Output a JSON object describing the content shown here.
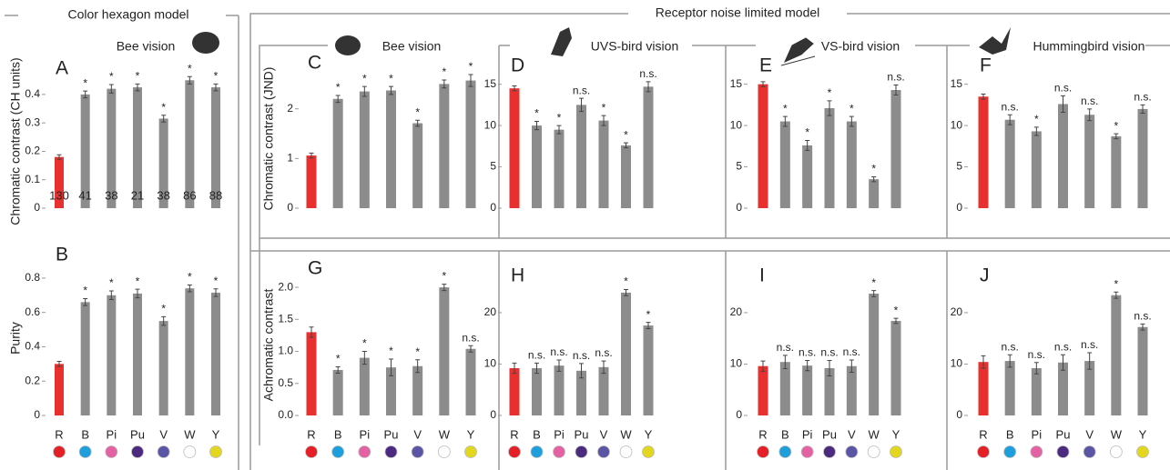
{
  "sections": [
    {
      "title": "Color hexagon model"
    },
    {
      "title": "Receptor noise limited model"
    }
  ],
  "chart_data": [
    {
      "type": "bar",
      "letter": "A",
      "subtitle": "Bee vision",
      "ylabel": "Chromatic contrast (CH units)",
      "values": [
        0.18,
        0.4,
        0.42,
        0.425,
        0.315,
        0.45,
        0.425
      ],
      "errors": [
        0.008,
        0.012,
        0.015,
        0.012,
        0.012,
        0.013,
        0.012
      ],
      "annotations": [
        null,
        "*",
        "*",
        "*",
        "*",
        "*",
        "*"
      ],
      "sample_sizes": [
        130,
        41,
        38,
        21,
        38,
        86,
        88
      ],
      "colors": [
        "#e8302e",
        "#8c8c8c",
        "#8c8c8c",
        "#8c8c8c",
        "#8c8c8c",
        "#8c8c8c",
        "#8c8c8c"
      ],
      "ylim": [
        0,
        0.47
      ],
      "yticks": [
        0,
        0.1,
        0.2,
        0.3,
        0.4
      ]
    },
    {
      "type": "bar",
      "letter": "B",
      "ylabel": "Purity",
      "categories": [
        "R",
        "B",
        "Pi",
        "Pu",
        "V",
        "W",
        "Y"
      ],
      "dot_colors": [
        "#e41f26",
        "#1e9fdc",
        "#e462a4",
        "#4b2a7f",
        "#5a55a5",
        "#ffffff",
        "#e3d61f"
      ],
      "values": [
        0.3,
        0.66,
        0.7,
        0.71,
        0.55,
        0.74,
        0.715
      ],
      "errors": [
        0.015,
        0.02,
        0.025,
        0.025,
        0.025,
        0.02,
        0.022
      ],
      "annotations": [
        null,
        "*",
        "*",
        "*",
        "*",
        "*",
        "*"
      ],
      "colors": [
        "#e8302e",
        "#8c8c8c",
        "#8c8c8c",
        "#8c8c8c",
        "#8c8c8c",
        "#8c8c8c",
        "#8c8c8c"
      ],
      "ylim": [
        0,
        0.9
      ],
      "yticks": [
        0,
        0.2,
        0.4,
        0.6,
        0.8
      ]
    },
    {
      "type": "bar",
      "letter": "C",
      "subtitle": "Bee vision",
      "ylabel": "Chromatic contrast (JND)",
      "values": [
        1.06,
        2.2,
        2.35,
        2.37,
        1.71,
        2.5,
        2.57
      ],
      "errors": [
        0.05,
        0.07,
        0.1,
        0.08,
        0.06,
        0.08,
        0.12
      ],
      "annotations": [
        null,
        "*",
        "*",
        "*",
        "*",
        "*",
        "*"
      ],
      "colors": [
        "#e8302e",
        "#8c8c8c",
        "#8c8c8c",
        "#8c8c8c",
        "#8c8c8c",
        "#8c8c8c",
        "#8c8c8c"
      ],
      "ylim": [
        0,
        2.8
      ],
      "yticks": [
        0,
        1,
        2
      ]
    },
    {
      "type": "bar",
      "letter": "D",
      "subtitle": "UVS-bird vision",
      "values": [
        14.5,
        10.0,
        9.5,
        12.5,
        10.6,
        7.6,
        14.7
      ],
      "errors": [
        0.3,
        0.5,
        0.5,
        0.8,
        0.6,
        0.3,
        0.6
      ],
      "annotations": [
        null,
        "*",
        "*",
        "n.s.",
        "*",
        "*",
        "n.s."
      ],
      "colors": [
        "#e8302e",
        "#8c8c8c",
        "#8c8c8c",
        "#8c8c8c",
        "#8c8c8c",
        "#8c8c8c",
        "#8c8c8c"
      ],
      "ylim": [
        0,
        16.5
      ],
      "yticks": [
        0,
        5,
        10,
        15
      ]
    },
    {
      "type": "bar",
      "letter": "E",
      "subtitle": "VS-bird vision",
      "values": [
        15.0,
        10.5,
        7.6,
        12.1,
        10.5,
        3.5,
        14.3
      ],
      "errors": [
        0.3,
        0.6,
        0.6,
        0.9,
        0.6,
        0.3,
        0.6
      ],
      "annotations": [
        null,
        "*",
        "*",
        "*",
        "*",
        "*",
        "n.s."
      ],
      "colors": [
        "#e8302e",
        "#8c8c8c",
        "#8c8c8c",
        "#8c8c8c",
        "#8c8c8c",
        "#8c8c8c",
        "#8c8c8c"
      ],
      "ylim": [
        0,
        16.5
      ],
      "yticks": [
        0,
        5,
        10,
        15
      ]
    },
    {
      "type": "bar",
      "letter": "F",
      "subtitle": "Hummingbird vision",
      "values": [
        13.5,
        10.7,
        9.3,
        12.6,
        11.3,
        8.7,
        12.0
      ],
      "errors": [
        0.3,
        0.6,
        0.5,
        1.0,
        0.7,
        0.3,
        0.5
      ],
      "annotations": [
        null,
        "n.s.",
        "*",
        "n.s.",
        "n.s.",
        "*",
        "n.s."
      ],
      "colors": [
        "#e8302e",
        "#8c8c8c",
        "#8c8c8c",
        "#8c8c8c",
        "#8c8c8c",
        "#8c8c8c",
        "#8c8c8c"
      ],
      "ylim": [
        0,
        16.5
      ],
      "yticks": [
        0,
        5,
        10,
        15
      ]
    },
    {
      "type": "bar",
      "letter": "G",
      "ylabel": "Achromatic contrast",
      "categories": [
        "R",
        "B",
        "Pi",
        "Pu",
        "V",
        "W",
        "Y"
      ],
      "dot_colors": [
        "#e41f26",
        "#1e9fdc",
        "#e462a4",
        "#4b2a7f",
        "#5a55a5",
        "#ffffff",
        "#e3d61f"
      ],
      "values": [
        1.3,
        0.71,
        0.9,
        0.75,
        0.77,
        2.0,
        1.04
      ],
      "errors": [
        0.08,
        0.05,
        0.1,
        0.13,
        0.1,
        0.05,
        0.05
      ],
      "annotations": [
        null,
        "*",
        "*",
        "*",
        "*",
        "*",
        "n.s."
      ],
      "colors": [
        "#e8302e",
        "#8c8c8c",
        "#8c8c8c",
        "#8c8c8c",
        "#8c8c8c",
        "#8c8c8c",
        "#8c8c8c"
      ],
      "ylim": [
        0,
        2.2
      ],
      "yticks": [
        {
          "value": 0,
          "label": "0.0"
        },
        0.5,
        {
          "value": 1,
          "label": "1.0"
        },
        1.5,
        {
          "value": 2,
          "label": "2.0"
        }
      ]
    },
    {
      "type": "bar",
      "letter": "H",
      "categories": [
        "R",
        "B",
        "Pi",
        "Pu",
        "V",
        "W",
        "Y"
      ],
      "dot_colors": [
        "#e41f26",
        "#1e9fdc",
        "#e462a4",
        "#4b2a7f",
        "#5a55a5",
        "#ffffff",
        "#e3d61f"
      ],
      "values": [
        9.2,
        9.2,
        9.7,
        8.7,
        9.4,
        23.9,
        17.5
      ],
      "errors": [
        1.0,
        1.0,
        1.1,
        1.4,
        1.2,
        0.6,
        0.6
      ],
      "annotations": [
        null,
        "n.s.",
        "n.s.",
        "n.s.",
        "n.s.",
        "*",
        "*"
      ],
      "colors": [
        "#e8302e",
        "#8c8c8c",
        "#8c8c8c",
        "#8c8c8c",
        "#8c8c8c",
        "#8c8c8c",
        "#8c8c8c"
      ],
      "ylim": [
        0,
        26
      ],
      "yticks": [
        0,
        10,
        20
      ]
    },
    {
      "type": "bar",
      "letter": "I",
      "categories": [
        "R",
        "B",
        "Pi",
        "Pu",
        "V",
        "W",
        "Y"
      ],
      "dot_colors": [
        "#e41f26",
        "#1e9fdc",
        "#e462a4",
        "#4b2a7f",
        "#5a55a5",
        "#ffffff",
        "#e3d61f"
      ],
      "values": [
        9.6,
        10.4,
        9.7,
        9.2,
        9.6,
        23.7,
        18.4
      ],
      "errors": [
        1.0,
        1.3,
        1.0,
        1.5,
        1.2,
        0.6,
        0.5
      ],
      "annotations": [
        null,
        "n.s.",
        "n.s.",
        "n.s.",
        "n.s.",
        "*",
        "*"
      ],
      "colors": [
        "#e8302e",
        "#8c8c8c",
        "#8c8c8c",
        "#8c8c8c",
        "#8c8c8c",
        "#8c8c8c",
        "#8c8c8c"
      ],
      "ylim": [
        0,
        26
      ],
      "yticks": [
        0,
        10,
        20
      ]
    },
    {
      "type": "bar",
      "letter": "J",
      "categories": [
        "R",
        "B",
        "Pi",
        "Pu",
        "V",
        "W",
        "Y"
      ],
      "dot_colors": [
        "#e41f26",
        "#1e9fdc",
        "#e462a4",
        "#4b2a7f",
        "#5a55a5",
        "#ffffff",
        "#e3d61f"
      ],
      "values": [
        10.4,
        10.6,
        9.2,
        10.3,
        10.6,
        23.4,
        17.2
      ],
      "errors": [
        1.2,
        1.2,
        1.1,
        1.5,
        1.6,
        0.6,
        0.6
      ],
      "annotations": [
        null,
        "n.s.",
        "n.s.",
        "n.s.",
        "n.s.",
        "*",
        "n.s."
      ],
      "colors": [
        "#e8302e",
        "#8c8c8c",
        "#8c8c8c",
        "#8c8c8c",
        "#8c8c8c",
        "#8c8c8c",
        "#8c8c8c"
      ],
      "ylim": [
        0,
        26
      ],
      "yticks": [
        0,
        10,
        20
      ]
    }
  ]
}
